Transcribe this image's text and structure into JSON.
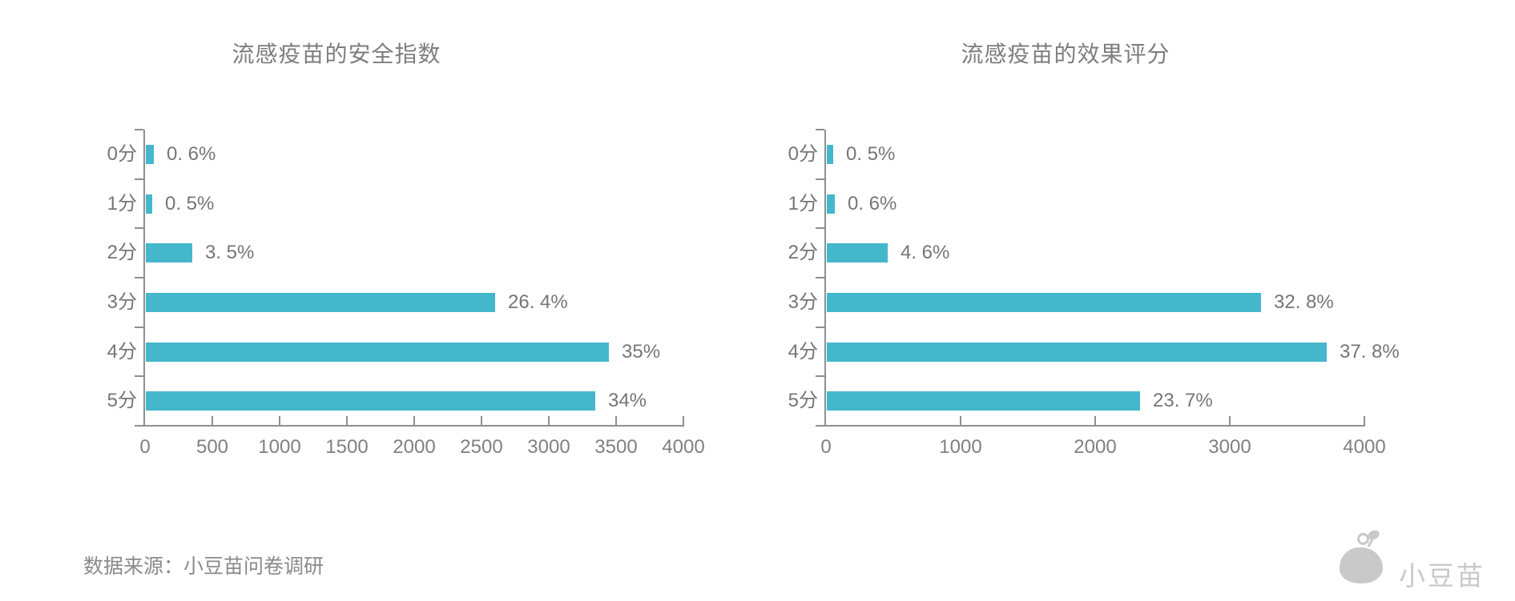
{
  "chart_data": [
    {
      "type": "bar",
      "orientation": "horizontal",
      "title": "流感疫苗的安全指数",
      "categories": [
        "0分",
        "1分",
        "2分",
        "3分",
        "4分",
        "5分"
      ],
      "values": [
        59,
        49,
        344,
        2595,
        3440,
        3342
      ],
      "value_labels": [
        "0. 6%",
        "0. 5%",
        "3. 5%",
        "26. 4%",
        "35%",
        "34%"
      ],
      "percentages": [
        0.6,
        0.5,
        3.5,
        26.4,
        35,
        34
      ],
      "xlim": [
        0,
        4000
      ],
      "x_ticks": [
        0,
        500,
        1000,
        1500,
        2000,
        2500,
        3000,
        3500,
        4000
      ],
      "grid": false,
      "legend": false
    },
    {
      "type": "bar",
      "orientation": "horizontal",
      "title": "流感疫苗的效果评分",
      "categories": [
        "0分",
        "1分",
        "2分",
        "3分",
        "4分",
        "5分"
      ],
      "values": [
        49,
        59,
        452,
        3224,
        3715,
        2329
      ],
      "value_labels": [
        "0. 5%",
        "0. 6%",
        "4. 6%",
        "32. 8%",
        "37. 8%",
        "23. 7%"
      ],
      "percentages": [
        0.5,
        0.6,
        4.6,
        32.8,
        37.8,
        23.7
      ],
      "xlim": [
        0,
        4000
      ],
      "x_ticks": [
        0,
        1000,
        2000,
        3000,
        4000
      ],
      "grid": false,
      "legend": false
    }
  ],
  "footer": {
    "source_text": "数据来源：小豆苗问卷调研",
    "logo_text": "小豆苗"
  },
  "colors": {
    "bar": "#44b7cc",
    "axis": "#8f8f8f",
    "label": "#757575",
    "tick_label": "#808080",
    "title": "#7d7d7d",
    "source": "#8a8a8a",
    "logo": "#c9c9c9"
  }
}
